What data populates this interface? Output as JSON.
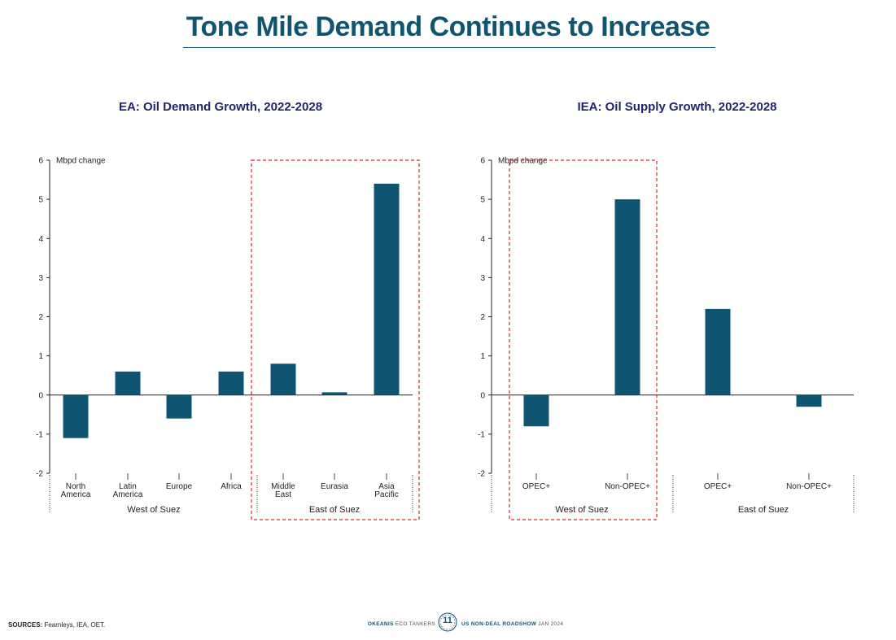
{
  "header": {
    "title": "Tone Mile Demand Continues to Increase"
  },
  "colors": {
    "bar": "#0f5470",
    "highlight": "#e0242b",
    "title": "#22236b",
    "heading": "#0f5470"
  },
  "chart_data": [
    {
      "type": "bar",
      "title": "EA: Oil Demand Growth, 2022-2028",
      "ylabel": "Mbpd change",
      "ylim": [
        -2,
        6
      ],
      "yticks": [
        "-2",
        "-1",
        "0",
        "1",
        "2",
        "3",
        "4",
        "5",
        "6"
      ],
      "categories": [
        "North America",
        "Latin America",
        "Europe",
        "Africa",
        "Middle East",
        "Eurasia",
        "Asia Pacific"
      ],
      "values": [
        -1.1,
        0.6,
        -0.6,
        0.6,
        0.8,
        0.07,
        5.4
      ],
      "groups": [
        {
          "label": "West of Suez",
          "categories": [
            "North America",
            "Latin America",
            "Europe",
            "Africa"
          ]
        },
        {
          "label": "East of Suez",
          "categories": [
            "Middle East",
            "Eurasia",
            "Asia Pacific"
          ],
          "highlighted": true
        }
      ],
      "grid": false
    },
    {
      "type": "bar",
      "title": "IEA: Oil Supply Growth, 2022-2028",
      "ylabel": "Mbpd change",
      "ylim": [
        -2,
        6
      ],
      "yticks": [
        "-2",
        "-1",
        "0",
        "1",
        "2",
        "3",
        "4",
        "5",
        "6"
      ],
      "categories": [
        "OPEC+",
        "Non-OPEC+",
        "OPEC+",
        "Non-OPEC+"
      ],
      "values": [
        -0.8,
        5.0,
        2.2,
        -0.3
      ],
      "groups": [
        {
          "label": "West of Suez",
          "categories": [
            "OPEC+",
            "Non-OPEC+"
          ],
          "highlighted": true
        },
        {
          "label": "East of Suez",
          "categories": [
            "OPEC+",
            "Non-OPEC+"
          ]
        }
      ],
      "grid": false
    }
  ],
  "footer": {
    "sources_label": "SOURCES:",
    "sources_text": "Fearnleys, IEA, OET.",
    "company_brand": "OKEANIS",
    "company_rest": "ECO TANKERS",
    "page_number": "11",
    "event_brand": "US NON-DEAL ROADSHOW",
    "event_date": "JAN 2024"
  }
}
